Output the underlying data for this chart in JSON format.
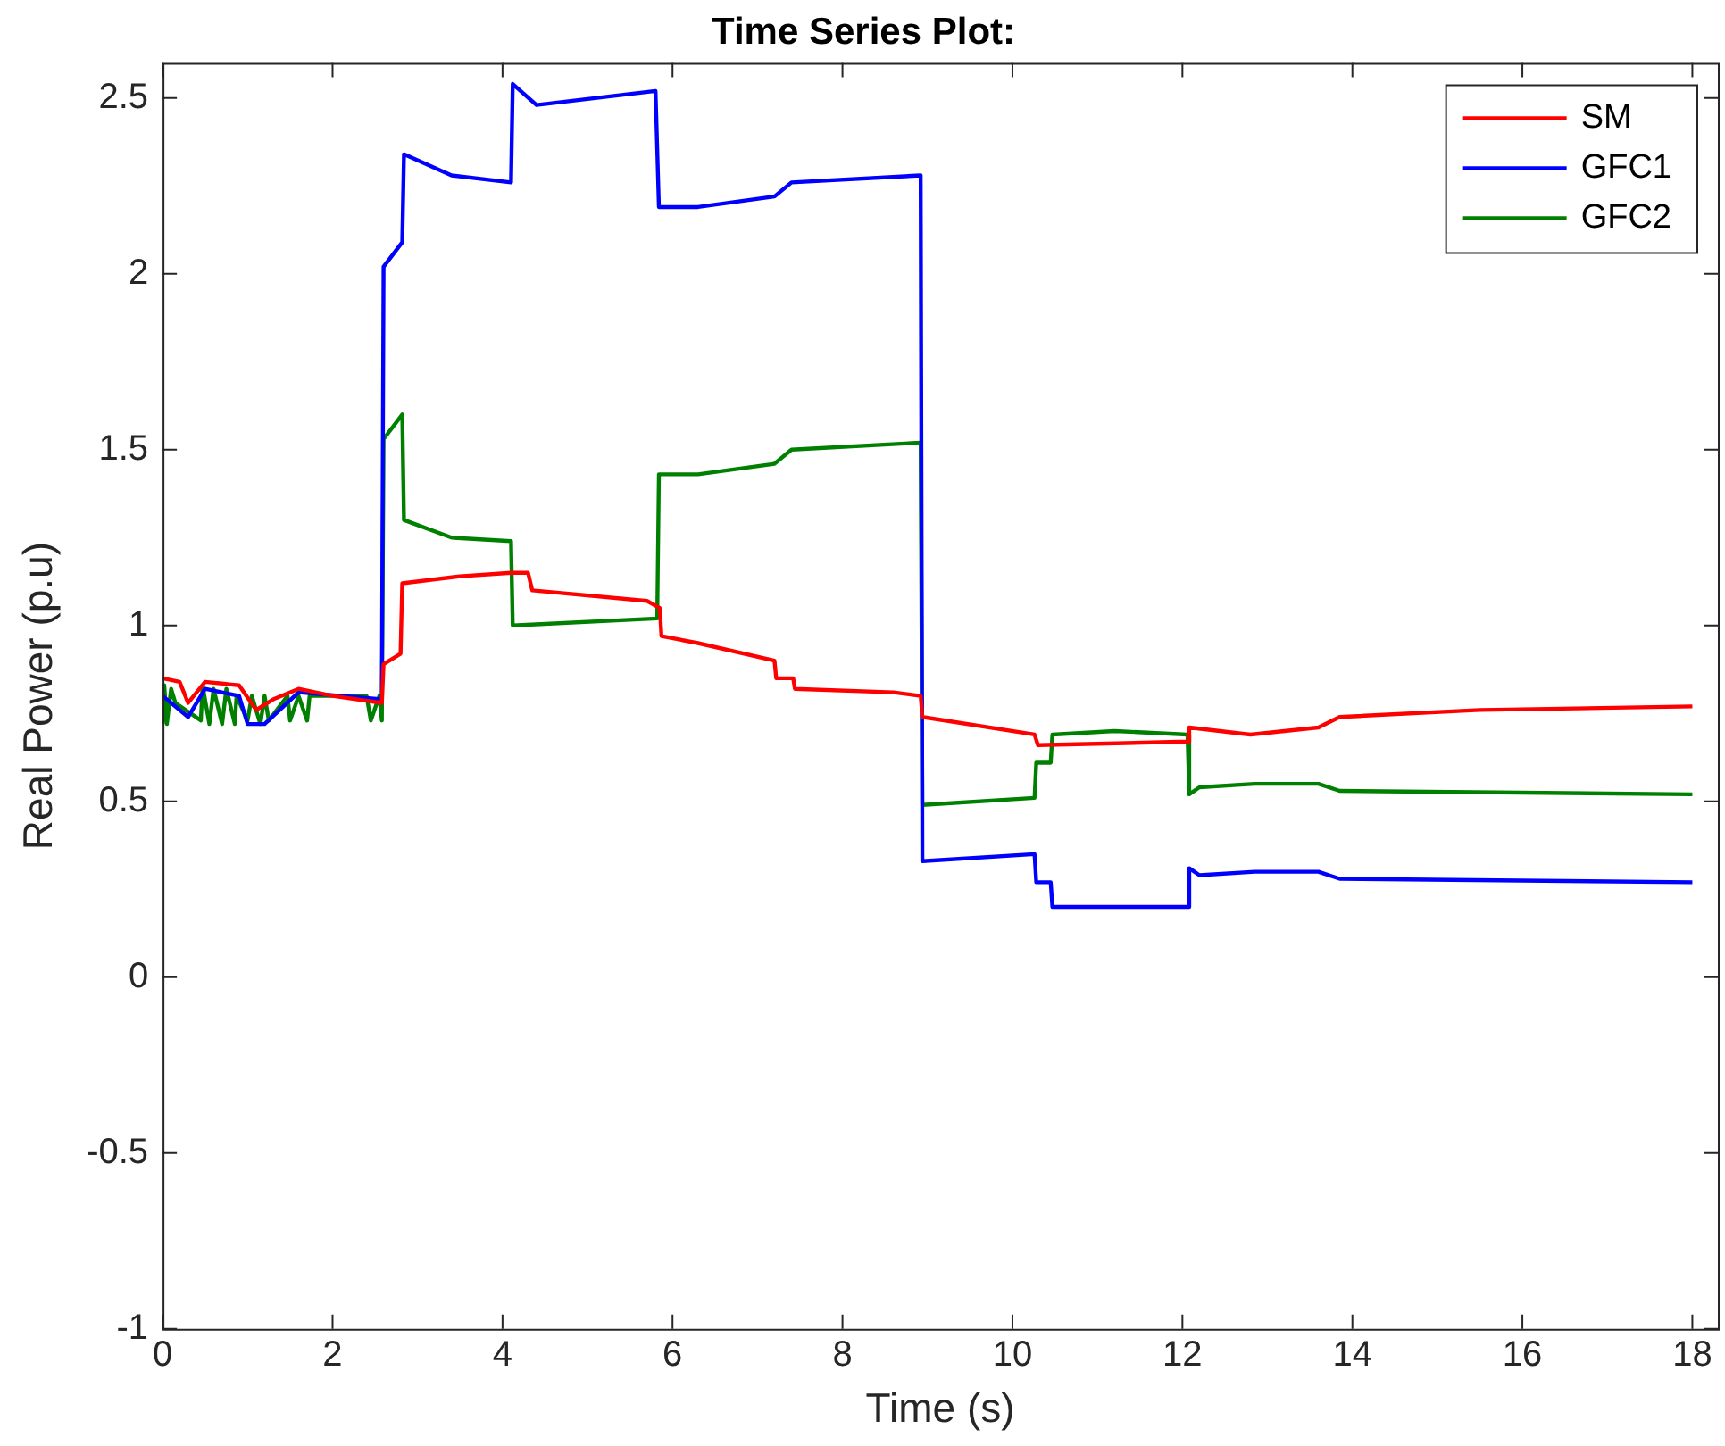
{
  "chart_data": {
    "type": "line",
    "title": "Time Series Plot:",
    "xlabel": "Time (s)",
    "ylabel": "Real Power (p.u)",
    "xlim": [
      0,
      18.3
    ],
    "xticks": [
      0,
      2,
      4,
      6,
      8,
      10,
      12,
      14,
      16,
      18
    ],
    "ylim": [
      -1,
      2.6
    ],
    "yticks": [
      -1,
      -0.5,
      0,
      0.5,
      1,
      1.5,
      2,
      2.5
    ],
    "grid": false,
    "legend": "top right",
    "line_style": "solid",
    "marker": "none",
    "series": [
      {
        "name": "SM",
        "color": "#ff0000",
        "x": [
          0,
          0.2,
          0.3,
          0.5,
          0.9,
          1.1,
          1.3,
          1.6,
          2.0,
          2.58,
          2.6,
          2.8,
          2.82,
          3.5,
          4.1,
          4.3,
          4.35,
          5.7,
          5.85,
          5.87,
          6.3,
          7.2,
          7.22,
          7.42,
          7.44,
          8.6,
          8.92,
          8.94,
          10.26,
          10.3,
          12.06,
          12.08,
          12.8,
          13.6,
          13.85,
          15.5,
          18
        ],
        "values": [
          0.85,
          0.84,
          0.78,
          0.84,
          0.83,
          0.76,
          0.79,
          0.82,
          0.8,
          0.78,
          0.89,
          0.92,
          1.12,
          1.14,
          1.15,
          1.15,
          1.1,
          1.07,
          1.05,
          0.97,
          0.95,
          0.9,
          0.85,
          0.85,
          0.82,
          0.81,
          0.8,
          0.74,
          0.69,
          0.66,
          0.67,
          0.71,
          0.69,
          0.71,
          0.74,
          0.76,
          0.77
        ]
      },
      {
        "name": "GFC1",
        "color": "#0000ff",
        "x": [
          0,
          0.3,
          0.5,
          0.9,
          1.0,
          1.2,
          1.6,
          2.58,
          2.6,
          2.82,
          2.84,
          3.4,
          4.1,
          4.12,
          4.4,
          5.8,
          5.84,
          6.3,
          7.2,
          7.4,
          8.92,
          8.94,
          10.26,
          10.28,
          10.45,
          10.47,
          12.06,
          12.08,
          12.2,
          12.85,
          13.6,
          13.85,
          18
        ],
        "values": [
          0.8,
          0.74,
          0.82,
          0.8,
          0.72,
          0.72,
          0.81,
          0.79,
          2.02,
          2.09,
          2.34,
          2.28,
          2.26,
          2.54,
          2.48,
          2.52,
          2.19,
          2.19,
          2.22,
          2.26,
          2.28,
          0.33,
          0.35,
          0.27,
          0.27,
          0.2,
          0.2,
          0.31,
          0.29,
          0.3,
          0.3,
          0.28,
          0.27
        ]
      },
      {
        "name": "GFC2",
        "color": "#008000",
        "x": [
          0,
          0.02,
          0.05,
          0.1,
          0.15,
          0.45,
          0.47,
          0.55,
          0.6,
          0.7,
          0.75,
          0.85,
          0.87,
          1.0,
          1.05,
          1.15,
          1.2,
          1.25,
          1.47,
          1.5,
          1.6,
          1.7,
          1.73,
          2.4,
          2.45,
          2.55,
          2.58,
          2.6,
          2.82,
          2.84,
          3.4,
          4.1,
          4.12,
          5.82,
          5.84,
          6.3,
          7.2,
          7.4,
          8.92,
          8.94,
          10.26,
          10.28,
          10.45,
          10.47,
          11.2,
          12.06,
          12.08,
          12.2,
          12.85,
          13.6,
          13.85,
          18
        ],
        "values": [
          0.72,
          0.83,
          0.72,
          0.82,
          0.78,
          0.73,
          0.83,
          0.72,
          0.82,
          0.72,
          0.82,
          0.72,
          0.8,
          0.73,
          0.8,
          0.72,
          0.8,
          0.73,
          0.8,
          0.73,
          0.8,
          0.73,
          0.8,
          0.8,
          0.73,
          0.8,
          0.73,
          1.53,
          1.6,
          1.3,
          1.25,
          1.24,
          1.0,
          1.02,
          1.43,
          1.43,
          1.46,
          1.5,
          1.52,
          0.49,
          0.51,
          0.61,
          0.61,
          0.69,
          0.7,
          0.69,
          0.52,
          0.54,
          0.55,
          0.55,
          0.53,
          0.52
        ]
      }
    ]
  }
}
